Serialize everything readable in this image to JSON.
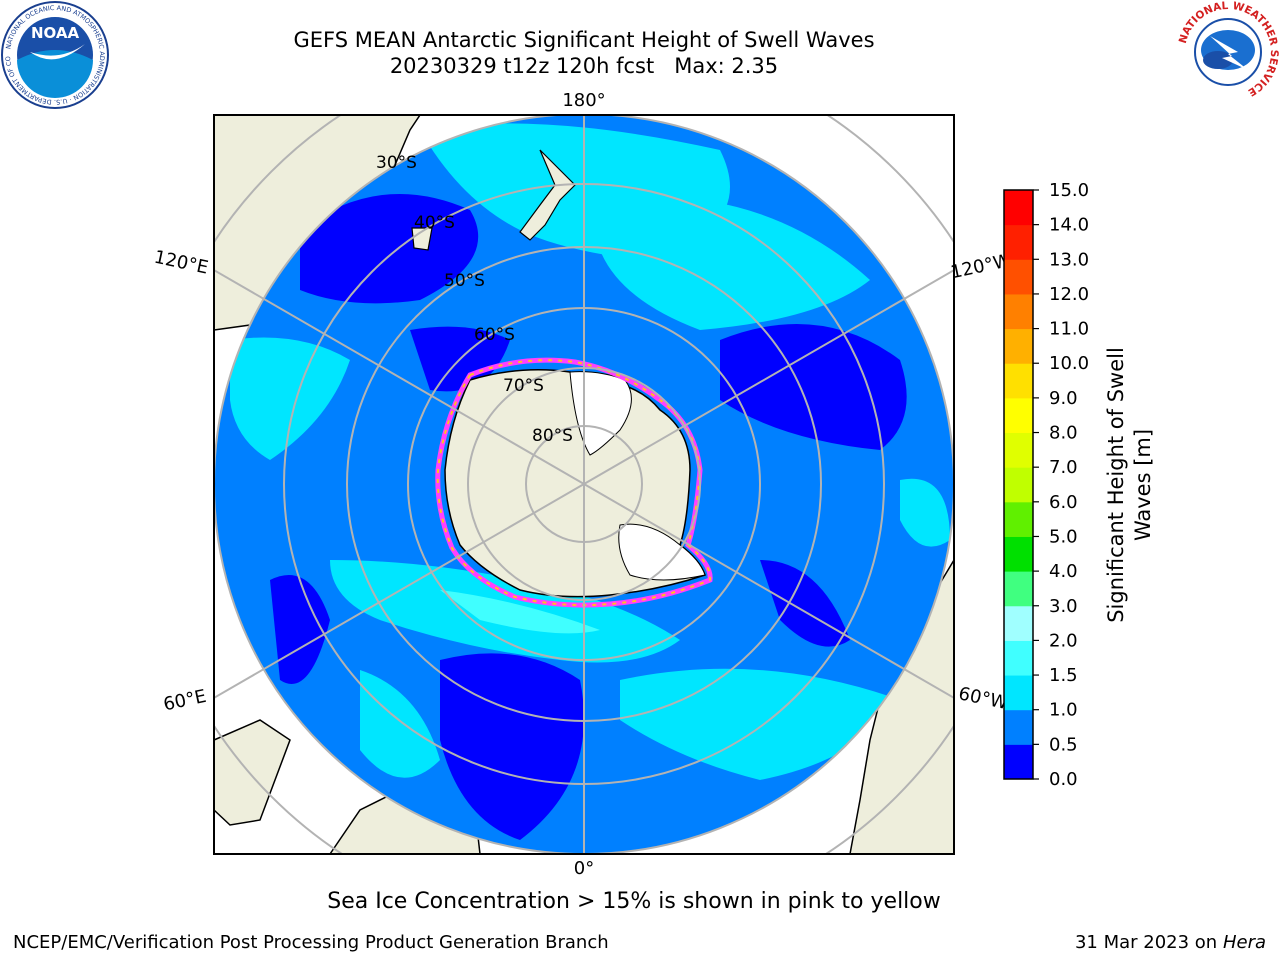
{
  "header": {
    "title_line1": "GEFS MEAN Antarctic Significant Height of Swell Waves",
    "title_line2": "20230329 t12z 120h fcst   Max: 2.35"
  },
  "logos": {
    "noaa_text": "NOAA",
    "noaa_ring_text": "NATIONAL OCEANIC AND ATMOSPHERIC ADMINISTRATION · U.S. DEPARTMENT OF COMMERCE",
    "nws_ring_text": "NATIONAL WEATHER SERVICE"
  },
  "map": {
    "projection": "south-polar-stereographic",
    "longitude_labels": {
      "top": "180°",
      "bottom": "0°",
      "upper_left": "120°E",
      "upper_right": "120°W",
      "lower_left": "60°E",
      "lower_right": "60°W"
    },
    "latitude_labels": [
      "30°S",
      "40°S",
      "50°S",
      "60°S",
      "70°S",
      "80°S"
    ],
    "colors": {
      "land": "#eeeedc",
      "ice_shelf": "#ffffff",
      "graticule": "#b3b3b3",
      "sea_ice_edge": [
        "#ff40ff",
        "#ffc020"
      ]
    }
  },
  "colorbar": {
    "label_line1": "Significant Height of Swell",
    "label_line2": "Waves [m]",
    "ticks": [
      "15.0",
      "14.0",
      "13.0",
      "12.0",
      "11.0",
      "10.0",
      "9.0",
      "8.0",
      "7.0",
      "6.0",
      "5.0",
      "4.0",
      "3.0",
      "2.0",
      "1.5",
      "1.0",
      "0.5",
      "0.0"
    ],
    "bins": [
      {
        "range": "0.0-0.5",
        "color": "#0000ff"
      },
      {
        "range": "0.5-1.0",
        "color": "#0080ff"
      },
      {
        "range": "1.0-1.5",
        "color": "#00e6ff"
      },
      {
        "range": "1.5-2.0",
        "color": "#40ffff"
      },
      {
        "range": "2.0-3.0",
        "color": "#a0ffff"
      },
      {
        "range": "3.0-4.0",
        "color": "#40ff80"
      },
      {
        "range": "4.0-5.0",
        "color": "#00e000"
      },
      {
        "range": "5.0-6.0",
        "color": "#60f000"
      },
      {
        "range": "6.0-7.0",
        "color": "#c0ff00"
      },
      {
        "range": "7.0-8.0",
        "color": "#e0ff00"
      },
      {
        "range": "8.0-9.0",
        "color": "#ffff00"
      },
      {
        "range": "9.0-10.0",
        "color": "#ffe000"
      },
      {
        "range": "10.0-11.0",
        "color": "#ffb000"
      },
      {
        "range": "11.0-12.0",
        "color": "#ff8000"
      },
      {
        "range": "12.0-13.0",
        "color": "#ff5000"
      },
      {
        "range": "13.0-14.0",
        "color": "#ff2000"
      },
      {
        "range": "14.0-15.0",
        "color": "#ff0000"
      }
    ]
  },
  "footer": {
    "note": "Sea Ice Concentration > 15% is shown in pink to yellow",
    "credit": "NCEP/EMC/Verification Post Processing Product Generation Branch",
    "date": "31 Mar 2023 on",
    "machine": "Hera"
  }
}
